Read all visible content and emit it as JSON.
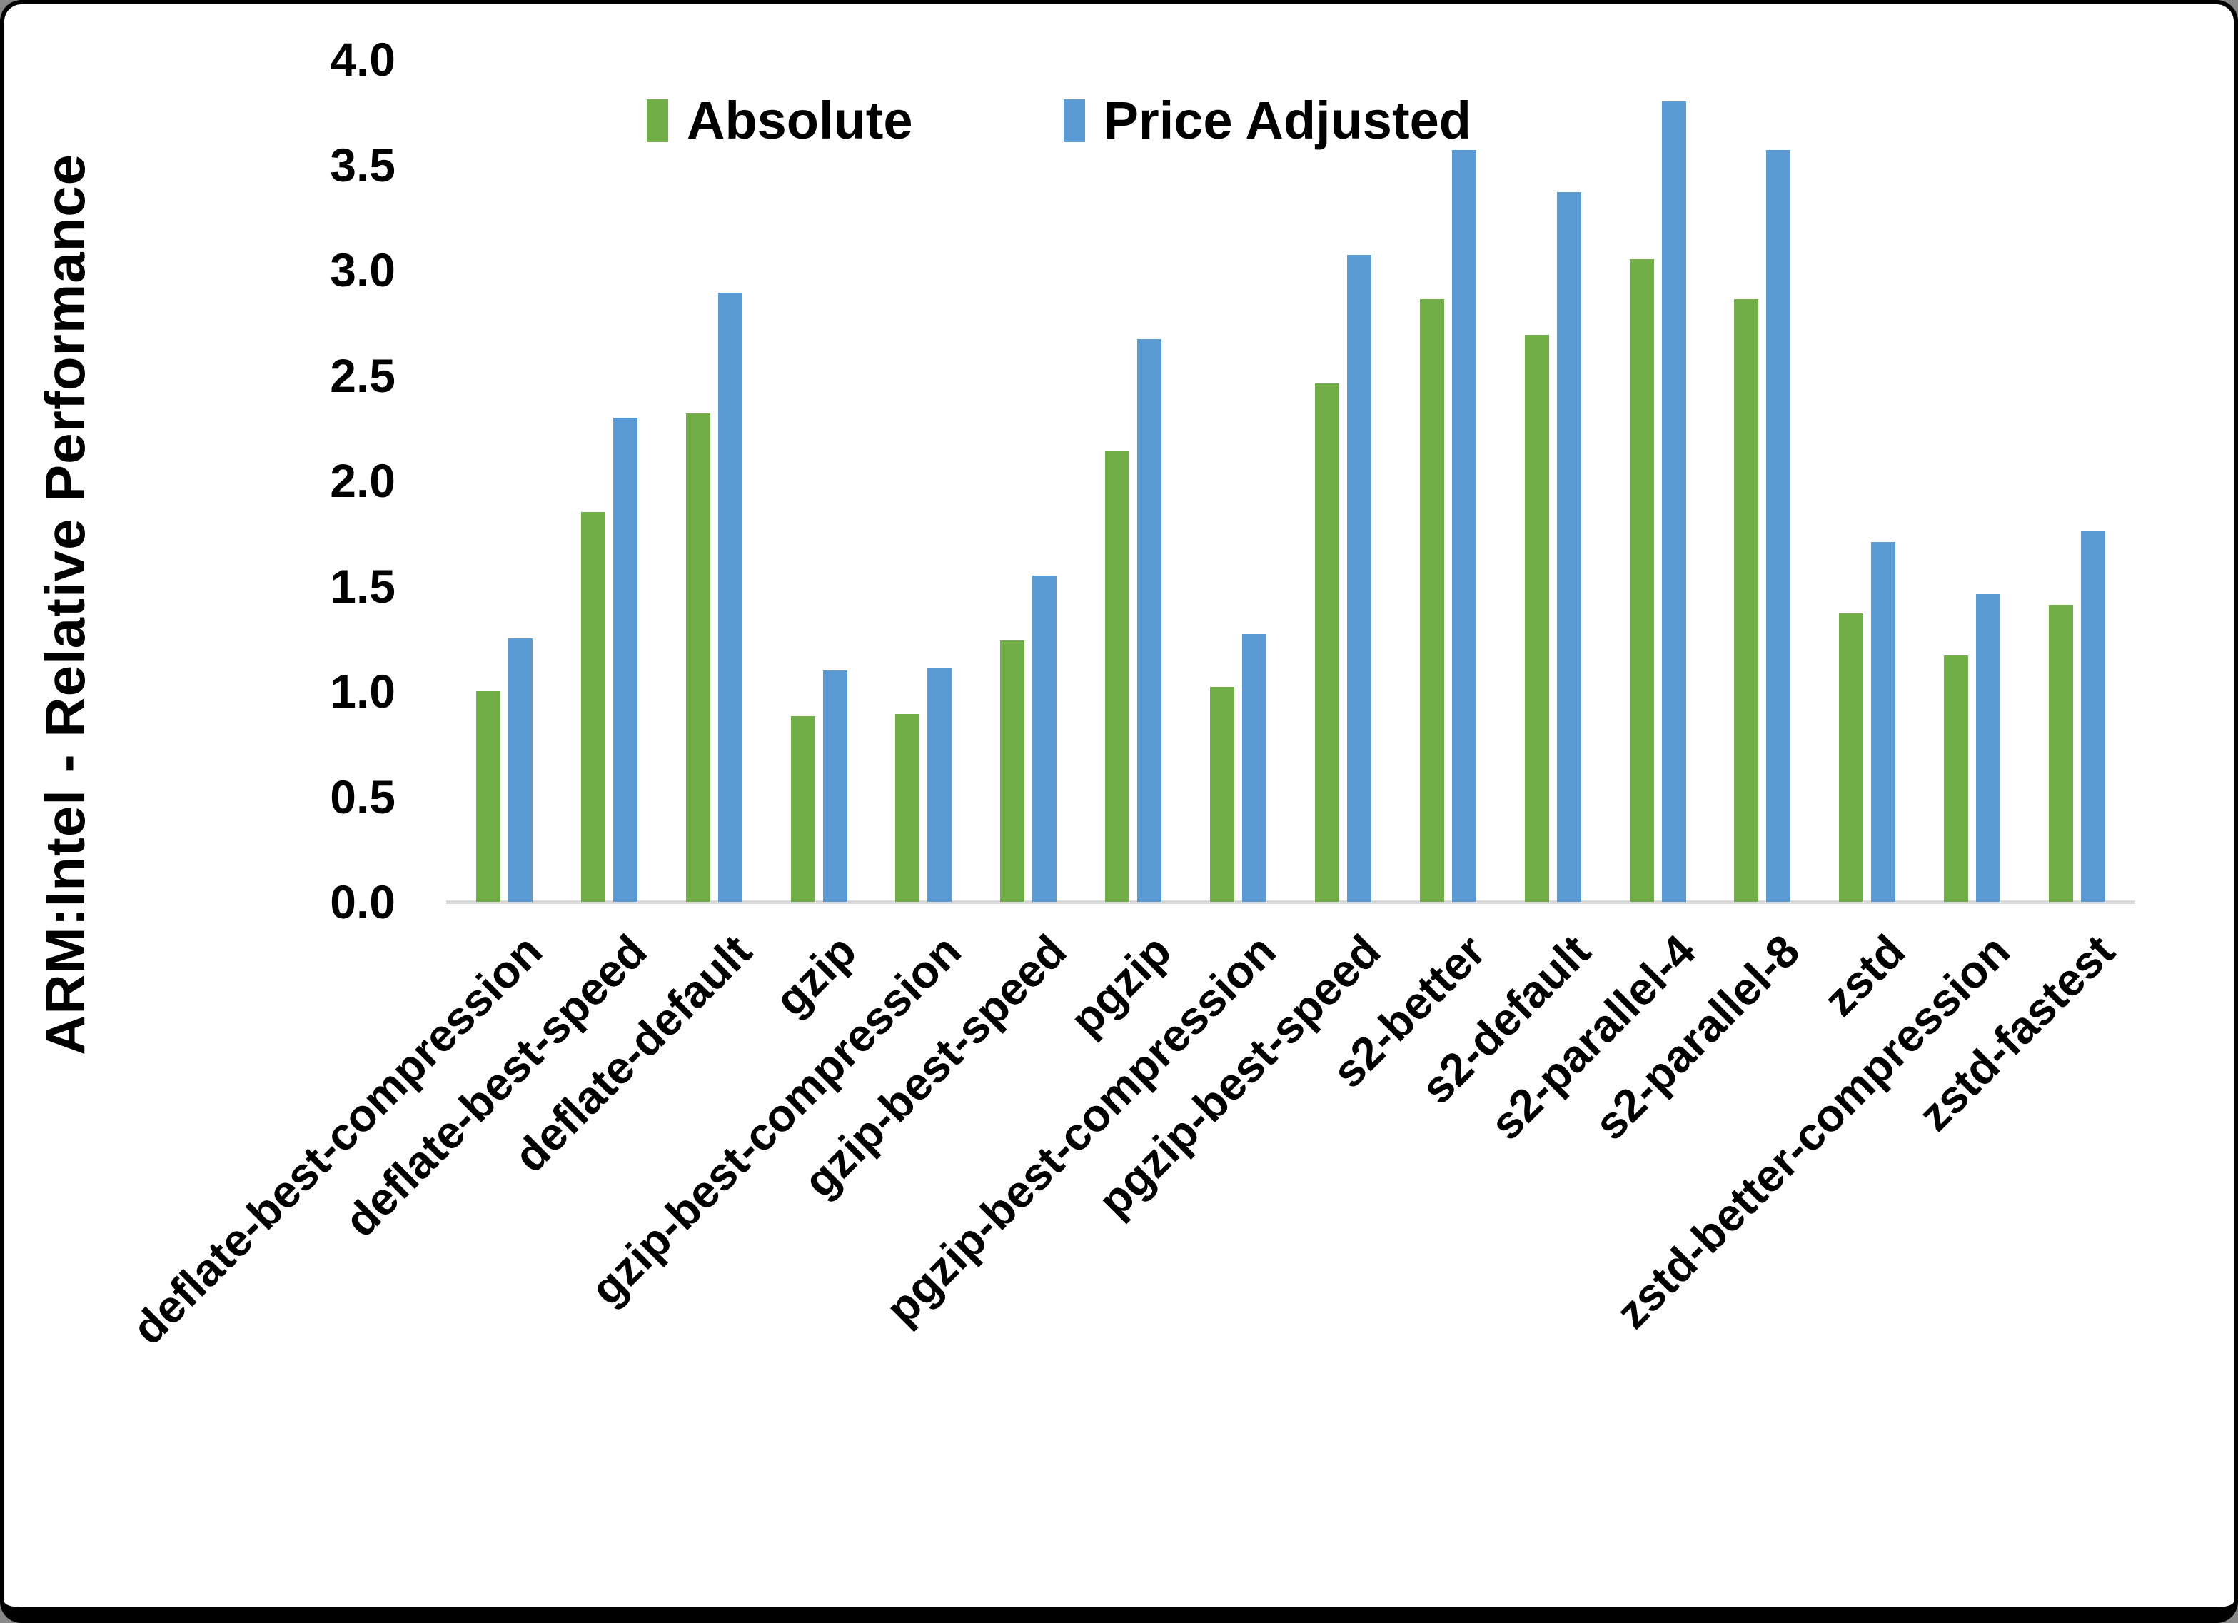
{
  "frame": {
    "background": "#ffffff",
    "border_color": "#000000"
  },
  "legend": {
    "position": "top-center"
  },
  "chart_data": {
    "type": "bar",
    "title": "",
    "xlabel": "",
    "ylabel": "ARM:Intel - Relative Performance",
    "ylim": [
      0.0,
      4.0
    ],
    "ytick_step": 0.5,
    "ytick_labels": [
      "0.0",
      "0.5",
      "1.0",
      "1.5",
      "2.0",
      "2.5",
      "3.0",
      "3.5",
      "4.0"
    ],
    "grid": false,
    "legend_position": "top-center",
    "axis_line_color": "#D9D9D9",
    "categories": [
      "deflate-best-compression",
      "deflate-best-speed",
      "deflate-default",
      "gzip",
      "gzip-best-compression",
      "gzip-best-speed",
      "pgzip",
      "pgzip-best-compression",
      "pgzip-best-speed",
      "s2-better",
      "s2-default",
      "s2-parallel-4",
      "s2-parallel-8",
      "zstd",
      "zstd-better-compression",
      "zstd-fastest"
    ],
    "series": [
      {
        "name": "Absolute",
        "color": "#70AD47",
        "values": [
          1.0,
          1.85,
          2.32,
          0.88,
          0.89,
          1.24,
          2.14,
          1.02,
          2.46,
          2.86,
          2.69,
          3.05,
          2.86,
          1.37,
          1.17,
          1.41
        ]
      },
      {
        "name": "Price Adjusted",
        "color": "#5B9BD5",
        "values": [
          1.25,
          2.3,
          2.89,
          1.1,
          1.11,
          1.55,
          2.67,
          1.27,
          3.07,
          3.57,
          3.37,
          3.8,
          3.57,
          1.71,
          1.46,
          1.76
        ]
      }
    ]
  }
}
